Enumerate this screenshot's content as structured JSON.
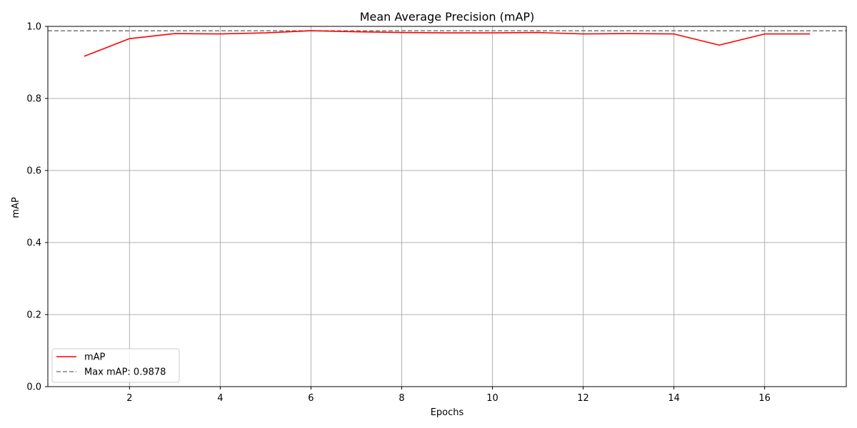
{
  "chart_data": {
    "type": "line",
    "title": "Mean Average Precision (mAP)",
    "xlabel": "Epochs",
    "ylabel": "mAP",
    "xlim": [
      0.2,
      17.8
    ],
    "ylim": [
      0.0,
      1.0
    ],
    "xticks": [
      2,
      4,
      6,
      8,
      10,
      12,
      14,
      16
    ],
    "yticks": [
      0.0,
      0.2,
      0.4,
      0.6,
      0.8,
      1.0
    ],
    "xtick_labels": [
      "2",
      "4",
      "6",
      "8",
      "10",
      "12",
      "14",
      "16"
    ],
    "ytick_labels": [
      "0.0",
      "0.2",
      "0.4",
      "0.6",
      "0.8",
      "1.0"
    ],
    "grid": true,
    "legend_position": "lower-left",
    "series": [
      {
        "name": "mAP",
        "color": "#ff0000",
        "style": "solid",
        "x": [
          1,
          2,
          3,
          4,
          5,
          6,
          7,
          8,
          9,
          10,
          11,
          12,
          13,
          14,
          15,
          16,
          17
        ],
        "values": [
          0.917,
          0.966,
          0.98,
          0.979,
          0.982,
          0.988,
          0.985,
          0.983,
          0.982,
          0.982,
          0.983,
          0.979,
          0.98,
          0.979,
          0.948,
          0.979,
          0.979
        ]
      }
    ],
    "reference_lines": [
      {
        "name": "Max mAP: 0.9878",
        "value": 0.9878,
        "color": "#808080",
        "style": "dashed"
      }
    ]
  }
}
